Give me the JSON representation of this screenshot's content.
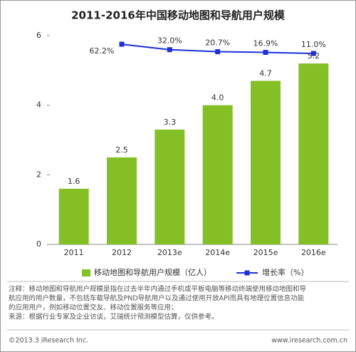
{
  "chart_data": {
    "type": "bar_line",
    "title": "2011-2016年中国移动地图和导航用户规模",
    "categories": [
      "2011",
      "2012",
      "2013e",
      "2014e",
      "2015e",
      "2016e"
    ],
    "series": [
      {
        "name": "移动地图和导航用户规模（亿人）",
        "color": "#84bf26",
        "values": [
          1.6,
          2.5,
          3.3,
          4.0,
          4.7,
          5.2
        ],
        "value_labels": [
          "1.6",
          "2.5",
          "3.3",
          "4.0",
          "4.7",
          "5.2"
        ]
      },
      {
        "name": "增长率（%）",
        "color": "#1f2fd9",
        "axis": "y2",
        "values": [
          null,
          62.2,
          32.0,
          20.7,
          16.9,
          11.0
        ],
        "value_labels": [
          null,
          "62.2%",
          "32.0%",
          "20.7%",
          "16.9%",
          "11.0%"
        ]
      }
    ],
    "ylim": [
      0,
      6
    ],
    "yticks": [
      0,
      2,
      4,
      6
    ],
    "y2lim": [
      -1050,
      110
    ],
    "notes": [
      "注释：移动地图和导航用户规模是指在过去半年内通过手机或平板电脑等移动终端使用移动地图和导",
      "航应用的用户数量，不包括车载导航及PND导航用户以及通过使用开放API而具有地理位置信息功能",
      "的应用用户，例如移动位置交友、移动位置服务等应用；",
      "来源：根据行业专家及企业访谈，艾瑞统计预测模型估算，仅供参考。"
    ],
    "footer_left": "©2013.3 iResearch Inc.",
    "footer_right": "www.iresearch.com.cn"
  }
}
